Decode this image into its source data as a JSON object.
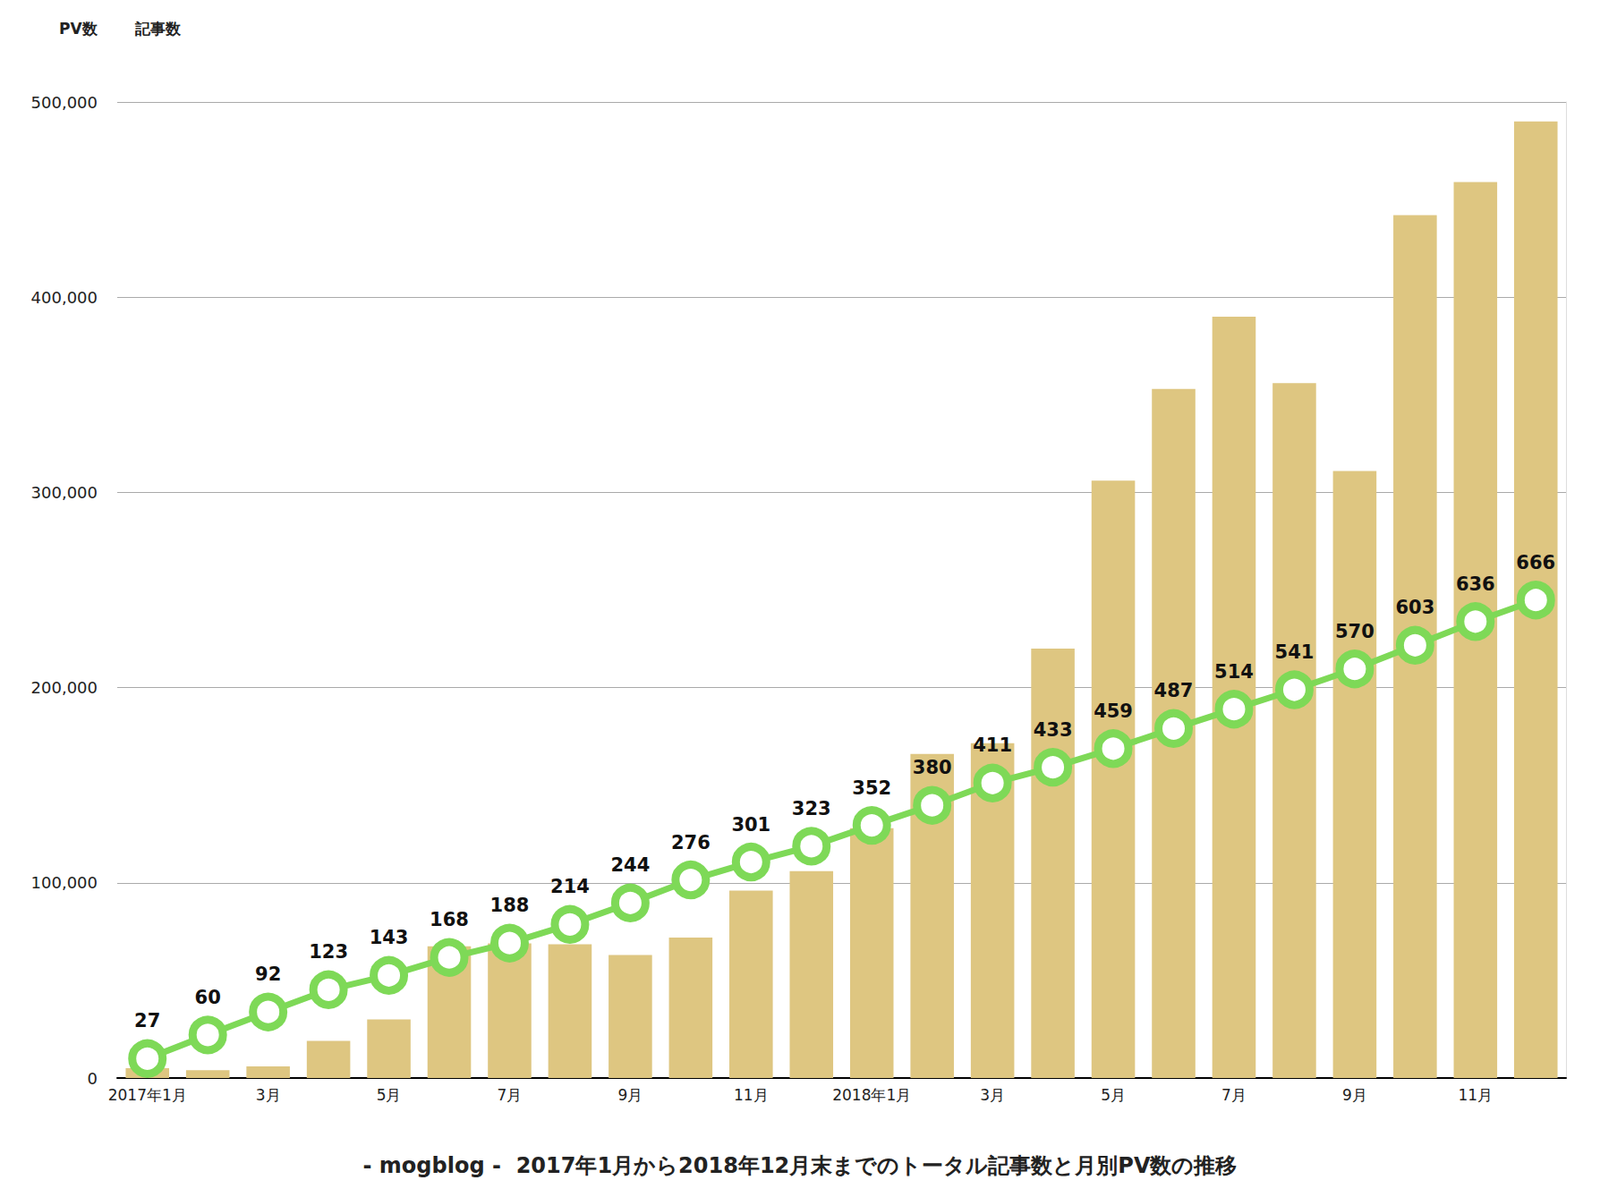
{
  "chart_data": {
    "type": "bar",
    "title": "- mogblog -  2017年1月から2018年12月末までのトータル記事数と月別PV数の推移",
    "categories": [
      "2017年1月",
      null,
      "3月",
      null,
      "5月",
      null,
      "7月",
      null,
      "9月",
      null,
      "11月",
      null,
      "2018年1月",
      null,
      "3月",
      null,
      "5月",
      null,
      "7月",
      null,
      "9月",
      null,
      "11月",
      null
    ],
    "series": [
      {
        "name": "PV数",
        "type": "bar",
        "color": "#dec681",
        "values": [
          5000,
          4000,
          6000,
          19000,
          30000,
          67500,
          69000,
          68500,
          63000,
          72000,
          96000,
          106000,
          128000,
          166000,
          171500,
          220000,
          306000,
          353000,
          390000,
          356000,
          311000,
          442000,
          459000,
          490000
        ]
      },
      {
        "name": "記事数",
        "type": "line",
        "color": "#7ed957",
        "axis": "y2",
        "marker": "circle",
        "line_style": "solid",
        "data_labels": true,
        "values": [
          27,
          60,
          92,
          123,
          143,
          168,
          188,
          214,
          244,
          276,
          301,
          323,
          352,
          380,
          411,
          433,
          459,
          487,
          514,
          541,
          570,
          603,
          636,
          666
        ]
      }
    ],
    "ylim": [
      0,
      500000
    ],
    "yticks": [
      0,
      100000,
      200000,
      300000,
      400000,
      500000
    ],
    "y2lim": [
      0,
      1360
    ],
    "y2ticks": [],
    "grid": true,
    "legend": "top-left"
  }
}
